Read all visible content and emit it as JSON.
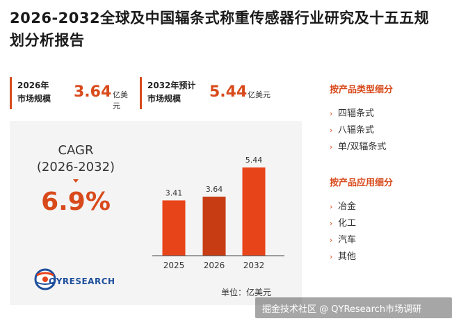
{
  "title": "2026-2032全球及中国辐条式称重传感器行业研究及十五五规划分析报告",
  "stats": [
    {
      "label_line1": "2026年",
      "label_line2": "市场规模",
      "value": "3.64",
      "unit": "亿美元"
    },
    {
      "label_line1": "2032年预计",
      "label_line2": "市场规模",
      "value": "5.44",
      "unit": "亿美元"
    }
  ],
  "cagr": {
    "label_line1": "CAGR",
    "label_line2": "(2026-2032)",
    "value": "6.9%"
  },
  "logo": {
    "text": "QYRESEARCH"
  },
  "unit_note": "单位：亿美元",
  "segments": [
    {
      "heading": "按产品类型细分",
      "items": [
        "四辐条式",
        "八辐条式",
        "单/双辐条式"
      ]
    },
    {
      "heading": "按产品应用细分",
      "items": [
        "冶金",
        "化工",
        "汽车",
        "其他"
      ]
    }
  ],
  "footer_watermark": "掘金技术社区 @ QYResearch市场调研",
  "colors": {
    "accent": "#d84a1b",
    "bar": "#e8441a",
    "bar_dark": "#c73c12",
    "logo_blue": "#1e4f9c"
  },
  "chart_data": {
    "type": "bar",
    "categories": [
      "2025",
      "2026",
      "2032"
    ],
    "values": [
      3.41,
      3.64,
      5.44
    ],
    "data_labels": [
      "3.41",
      "3.64",
      "5.44"
    ],
    "ylabel": "",
    "xlabel": "",
    "ylim": [
      0,
      6.0
    ],
    "grid": false,
    "legend": "none"
  }
}
